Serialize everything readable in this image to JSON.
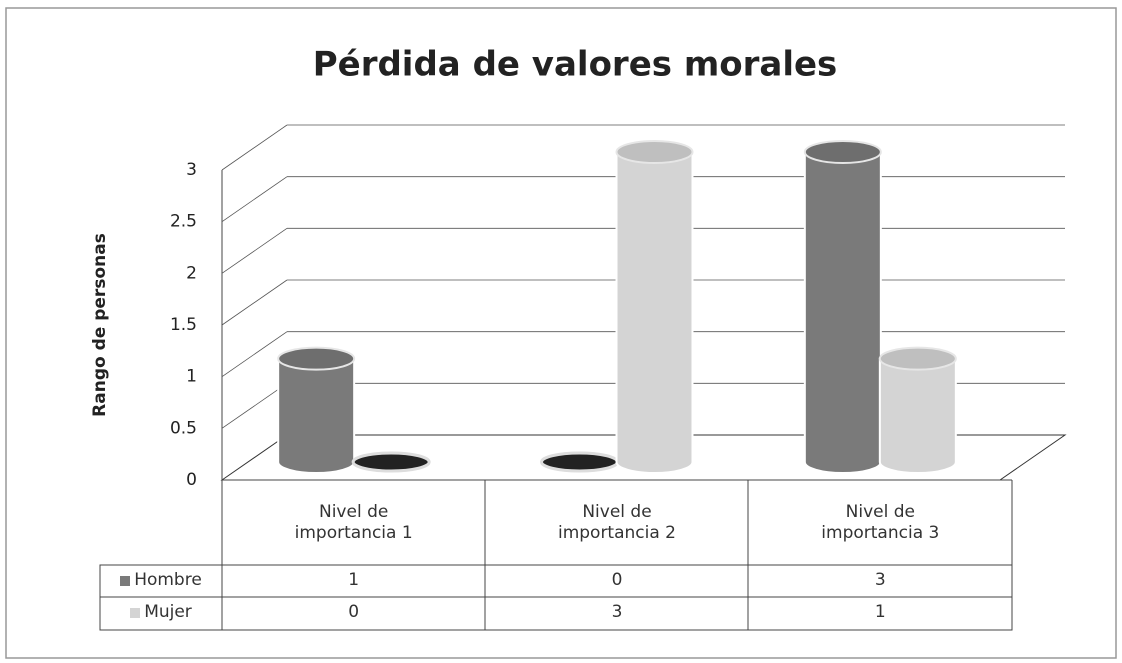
{
  "chart_data": {
    "type": "bar",
    "title": "Pérdida de valores morales",
    "y_label": "Rango de personas",
    "categories": [
      "Nivel de importancia 1",
      "Nivel de importancia 2",
      "Nivel de importancia 3"
    ],
    "series": [
      {
        "name": "Hombre",
        "color": "#7a7a7a",
        "values": [
          1,
          0,
          3
        ]
      },
      {
        "name": "Mujer",
        "color": "#d4d4d4",
        "values": [
          0,
          3,
          1
        ]
      }
    ],
    "ylim": [
      0,
      3
    ],
    "yticks": [
      0,
      0.5,
      1,
      1.5,
      2,
      2.5,
      3
    ],
    "grid": true,
    "data_table": true
  }
}
